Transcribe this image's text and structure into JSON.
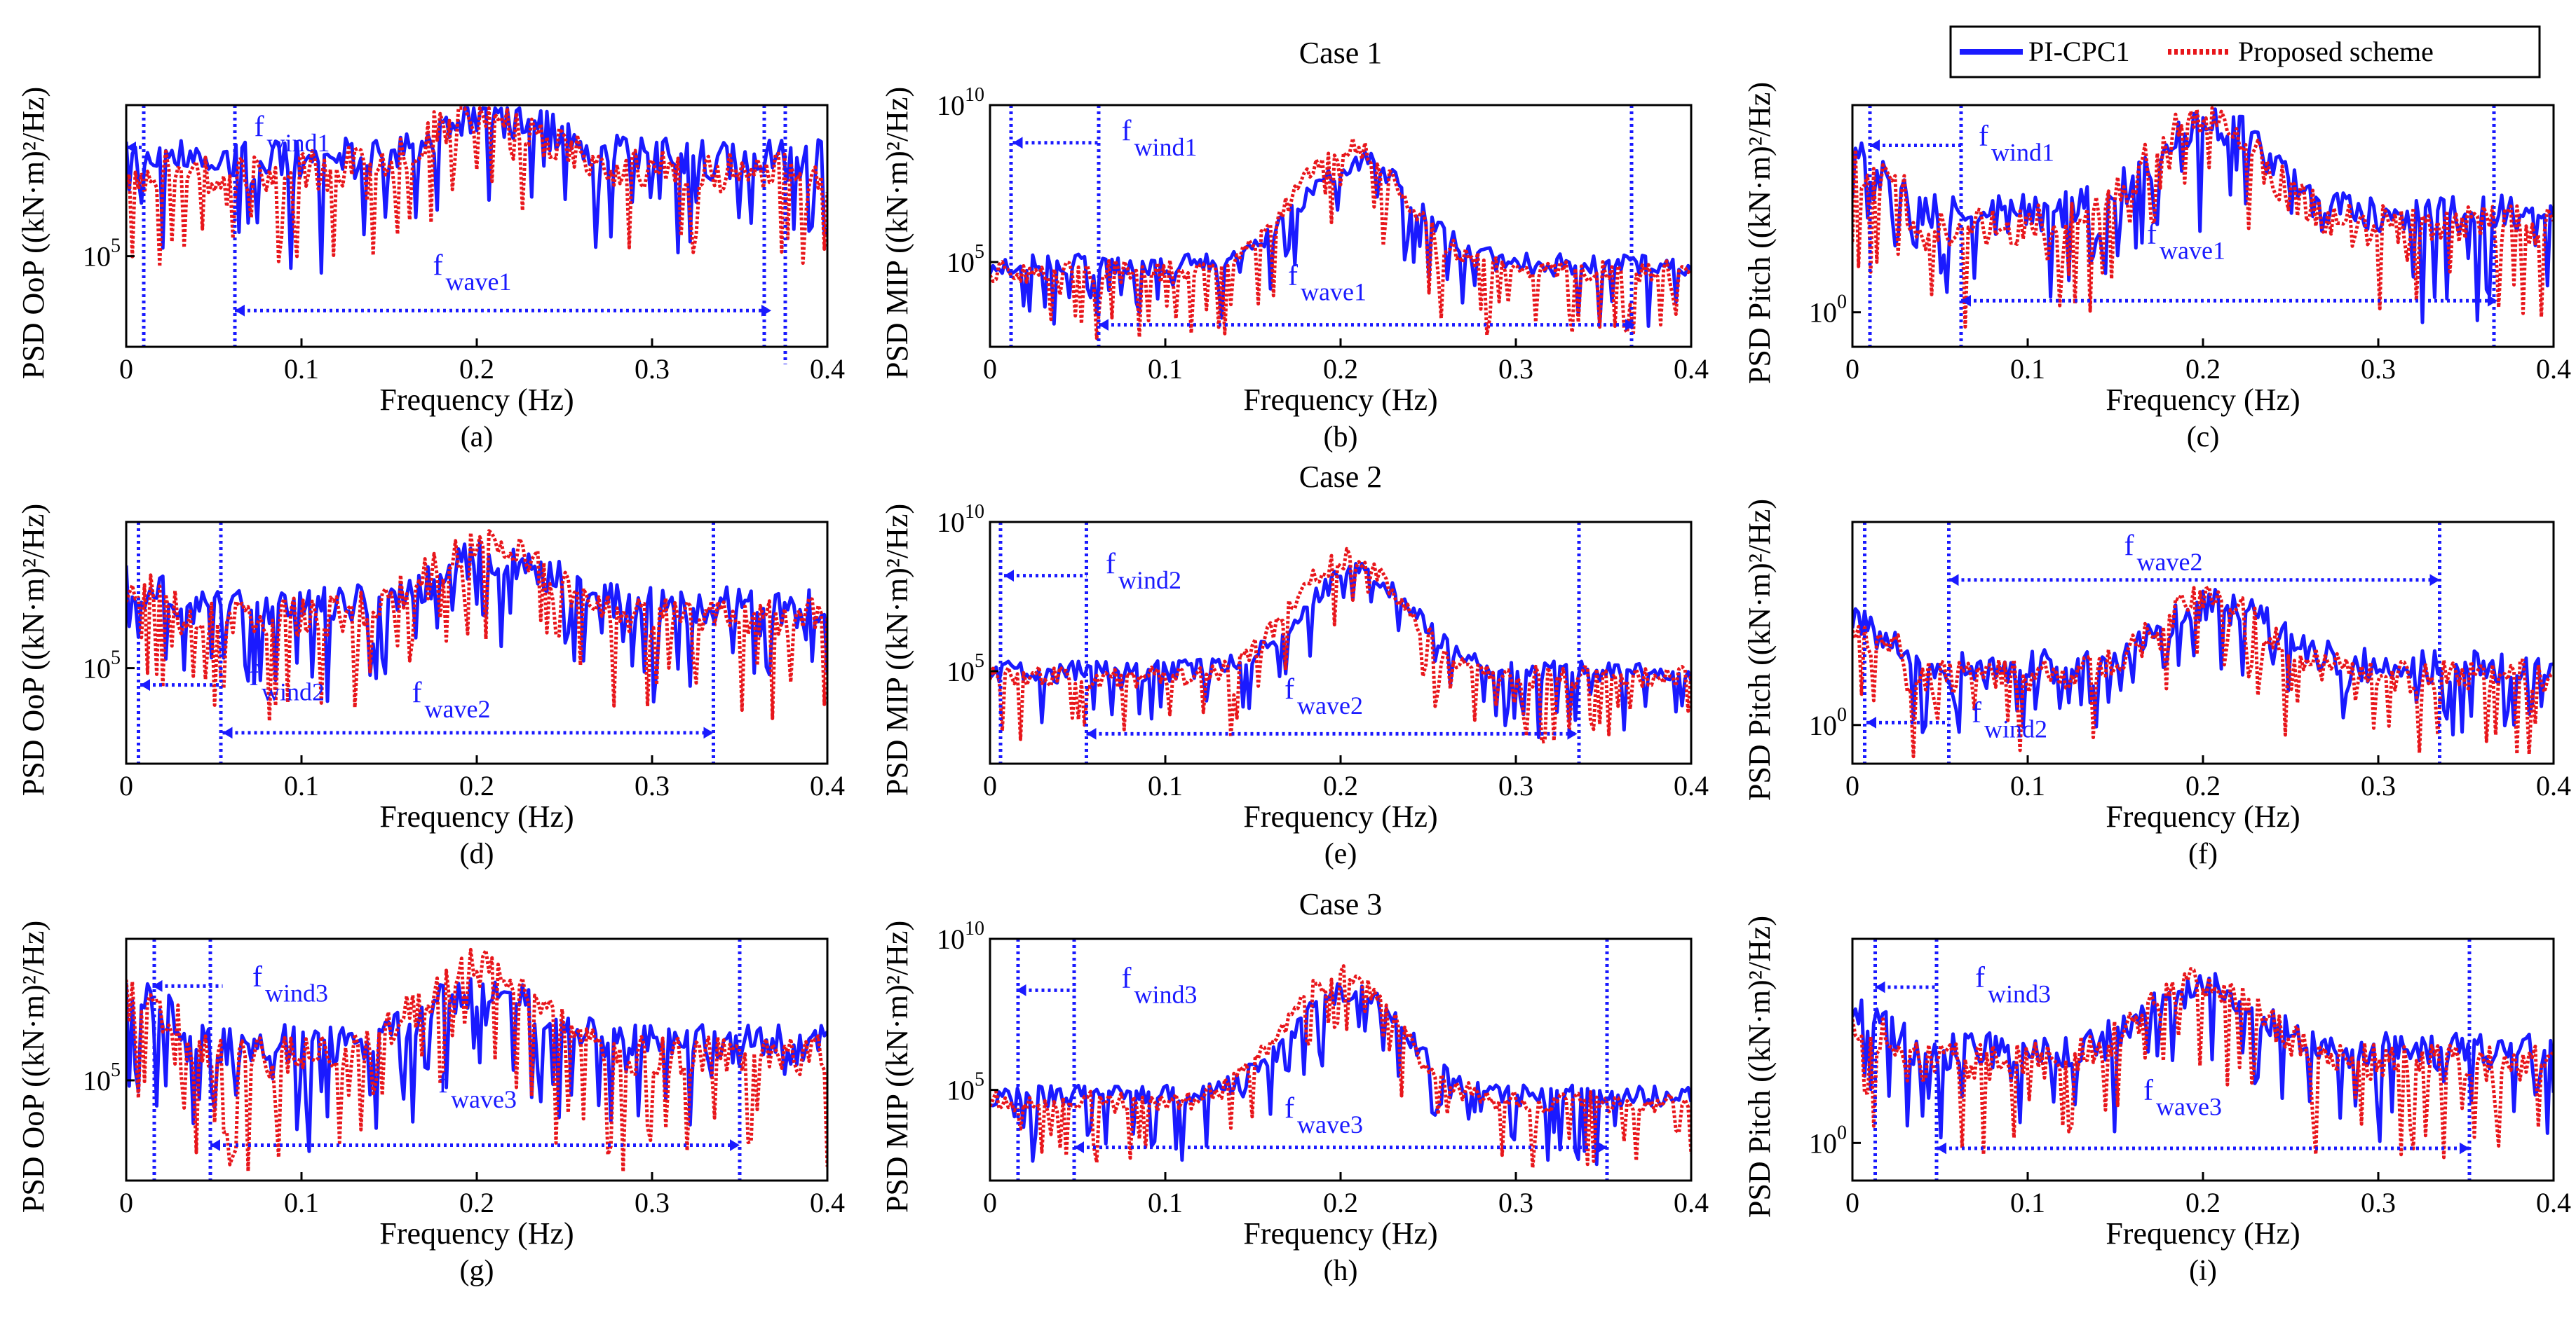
{
  "figure": {
    "legend": [
      {
        "label": "PI-CPC1",
        "color": "#1a1aff",
        "style": "solid"
      },
      {
        "label": "Proposed scheme",
        "color": "#e8161b",
        "style": "dotted"
      }
    ],
    "case_titles": [
      "Case 1",
      "Case 2",
      "Case 3"
    ]
  },
  "chart_data": [
    {
      "type": "line",
      "panel_label": "(a)",
      "row": 0,
      "col": 0,
      "ylabel": "PSD OoP ((kN·m)²/Hz)",
      "xlabel": "Frequency (Hz)",
      "xlim": [
        0,
        0.4
      ],
      "xticks": [
        "0",
        "0.1",
        "0.2",
        "0.3",
        "0.4"
      ],
      "ytick_labels": [
        {
          "base": "10",
          "exp": "5",
          "value": 5
        }
      ],
      "ylim_log10": [
        3.5,
        7.5
      ],
      "bands": [
        {
          "name": "f",
          "sub": "wind1",
          "from": 0.01,
          "to": 0.0,
          "label_x": 0.073,
          "label_ylog": 6.9,
          "arrow_ylog": 6.8
        },
        {
          "name": "f",
          "sub": "wave1",
          "from": 0.062,
          "to": 0.368,
          "label_x": 0.175,
          "label_ylog": 4.6,
          "arrow_ylog": 4.1
        }
      ],
      "vlines": [
        0.01,
        0.062,
        0.364,
        0.376
      ],
      "series": [
        {
          "name": "PI-CPC1",
          "peak_x": 0.21,
          "peak": 7.3,
          "floor": 6.6,
          "low_end": 6.0,
          "dip": 1.1,
          "seed": 11
        },
        {
          "name": "Proposed scheme",
          "peak_x": 0.205,
          "peak": 7.4,
          "floor": 6.4,
          "low_end": 5.9,
          "dip": 1.0,
          "seed": 12
        }
      ]
    },
    {
      "type": "line",
      "panel_label": "(b)",
      "row": 0,
      "col": 1,
      "ylabel": "PSD MIP ((kN·m)²/Hz)",
      "xlabel": "Frequency (Hz)",
      "xlim": [
        0,
        0.4
      ],
      "xticks": [
        "0",
        "0.1",
        "0.2",
        "0.3",
        "0.4"
      ],
      "ytick_labels": [
        {
          "base": "10",
          "exp": "10",
          "value": 10
        },
        {
          "base": "10",
          "exp": "5",
          "value": 5
        }
      ],
      "ylim_log10": [
        2.3,
        10
      ],
      "bands": [
        {
          "name": "f",
          "sub": "wind1",
          "from": 0.062,
          "to": 0.013,
          "label_x": 0.075,
          "label_ylog": 8.7,
          "arrow_ylog": 8.8
        },
        {
          "name": "f",
          "sub": "wave1",
          "from": 0.062,
          "to": 0.368,
          "label_x": 0.17,
          "label_ylog": 4.1,
          "arrow_ylog": 3.0
        }
      ],
      "vlines": [
        0.012,
        0.062,
        0.366
      ],
      "series": [
        {
          "name": "PI-CPC1",
          "peak_x": 0.21,
          "peak": 8.2,
          "floor": 4.9,
          "low_end": 4.3,
          "dip": 1.2,
          "seed": 21
        },
        {
          "name": "Proposed scheme",
          "peak_x": 0.205,
          "peak": 8.6,
          "floor": 4.7,
          "low_end": 4.0,
          "dip": 1.4,
          "seed": 22
        }
      ]
    },
    {
      "type": "line",
      "panel_label": "(c)",
      "row": 0,
      "col": 2,
      "ylabel": "PSD Pitch ((kN·m)²/Hz)",
      "xlabel": "Frequency (Hz)",
      "xlim": [
        0,
        0.4
      ],
      "xticks": [
        "0",
        "0.1",
        "0.2",
        "0.3",
        "0.4"
      ],
      "ytick_labels": [
        {
          "base": "10",
          "exp": "0",
          "value": 0
        }
      ],
      "ylim_log10": [
        -0.6,
        3.6
      ],
      "bands": [
        {
          "name": "f",
          "sub": "wind1",
          "from": 0.062,
          "to": 0.01,
          "label_x": 0.072,
          "label_ylog": 2.8,
          "arrow_ylog": 2.9
        },
        {
          "name": "f",
          "sub": "wave1",
          "from": 0.062,
          "to": 0.368,
          "label_x": 0.168,
          "label_ylog": 1.1,
          "arrow_ylog": 0.2
        }
      ],
      "vlines": [
        0.01,
        0.062,
        0.366
      ],
      "series": [
        {
          "name": "PI-CPC1",
          "peak_x": 0.205,
          "peak": 3.3,
          "floor": 1.7,
          "low_end": 2.7,
          "dip": 1.0,
          "seed": 31
        },
        {
          "name": "Proposed scheme",
          "peak_x": 0.2,
          "peak": 3.4,
          "floor": 1.5,
          "low_end": 2.5,
          "dip": 1.1,
          "seed": 32
        }
      ]
    },
    {
      "type": "line",
      "panel_label": "(d)",
      "row": 1,
      "col": 0,
      "ylabel": "PSD OoP ((kN·m)²/Hz)",
      "xlabel": "Frequency (Hz)",
      "xlim": [
        0,
        0.4
      ],
      "xticks": [
        "0",
        "0.1",
        "0.2",
        "0.3",
        "0.4"
      ],
      "ytick_labels": [
        {
          "base": "10",
          "exp": "5",
          "value": 5
        }
      ],
      "ylim_log10": [
        3.3,
        7.6
      ],
      "bands": [
        {
          "name": "f",
          "sub": "wind2",
          "from": 0.055,
          "to": 0.008,
          "label_x": 0.07,
          "label_ylog": 4.6,
          "arrow_ylog": 4.7
        },
        {
          "name": "f",
          "sub": "wave2",
          "from": 0.055,
          "to": 0.335,
          "label_x": 0.163,
          "label_ylog": 4.3,
          "arrow_ylog": 3.85
        }
      ],
      "vlines": [
        0.007,
        0.054,
        0.335
      ],
      "series": [
        {
          "name": "PI-CPC1",
          "peak_x": 0.21,
          "peak": 7.0,
          "floor": 6.1,
          "low_end": 6.6,
          "dip": 0.9,
          "seed": 41
        },
        {
          "name": "Proposed scheme",
          "peak_x": 0.205,
          "peak": 7.2,
          "floor": 5.9,
          "low_end": 6.5,
          "dip": 1.0,
          "seed": 42
        }
      ]
    },
    {
      "type": "line",
      "panel_label": "(e)",
      "row": 1,
      "col": 1,
      "ylabel": "PSD MIP ((kN·m)²/Hz)",
      "xlabel": "Frequency (Hz)",
      "xlim": [
        0,
        0.4
      ],
      "xticks": [
        "0",
        "0.1",
        "0.2",
        "0.3",
        "0.4"
      ],
      "ytick_labels": [
        {
          "base": "10",
          "exp": "10",
          "value": 10
        },
        {
          "base": "10",
          "exp": "5",
          "value": 5
        }
      ],
      "ylim_log10": [
        1.9,
        10
      ],
      "bands": [
        {
          "name": "f",
          "sub": "wind2",
          "from": 0.055,
          "to": 0.008,
          "label_x": 0.066,
          "label_ylog": 8.1,
          "arrow_ylog": 8.2
        },
        {
          "name": "f",
          "sub": "wave2",
          "from": 0.055,
          "to": 0.335,
          "label_x": 0.168,
          "label_ylog": 3.9,
          "arrow_ylog": 2.9
        }
      ],
      "vlines": [
        0.006,
        0.055,
        0.336
      ],
      "series": [
        {
          "name": "PI-CPC1",
          "peak_x": 0.21,
          "peak": 8.3,
          "floor": 5.0,
          "low_end": 4.3,
          "dip": 1.2,
          "seed": 51
        },
        {
          "name": "Proposed scheme",
          "peak_x": 0.205,
          "peak": 8.8,
          "floor": 4.8,
          "low_end": 4.1,
          "dip": 1.4,
          "seed": 52
        }
      ]
    },
    {
      "type": "line",
      "panel_label": "(f)",
      "row": 1,
      "col": 2,
      "ylabel": "PSD Pitch ((kN·m)²/Hz)",
      "xlabel": "Frequency (Hz)",
      "xlim": [
        0,
        0.4
      ],
      "xticks": [
        "0",
        "0.1",
        "0.2",
        "0.3",
        "0.4"
      ],
      "ytick_labels": [
        {
          "base": "10",
          "exp": "0",
          "value": 0
        }
      ],
      "ylim_log10": [
        -0.8,
        4.2
      ],
      "bands": [
        {
          "name": "f",
          "sub": "wind2",
          "from": 0.055,
          "to": 0.008,
          "label_x": 0.068,
          "label_ylog": -0.05,
          "arrow_ylog": 0.05
        },
        {
          "name": "f",
          "sub": "wave2",
          "from": 0.055,
          "to": 0.335,
          "label_x": 0.155,
          "label_ylog": 3.4,
          "arrow_ylog": 3.0
        }
      ],
      "vlines": [
        0.007,
        0.055,
        0.335
      ],
      "series": [
        {
          "name": "PI-CPC1",
          "peak_x": 0.21,
          "peak": 2.5,
          "floor": 1.2,
          "low_end": 2.1,
          "dip": 0.8,
          "seed": 61
        },
        {
          "name": "Proposed scheme",
          "peak_x": 0.205,
          "peak": 2.6,
          "floor": 1.0,
          "low_end": 1.9,
          "dip": 1.0,
          "seed": 62
        }
      ]
    },
    {
      "type": "line",
      "panel_label": "(g)",
      "row": 2,
      "col": 0,
      "ylabel": "PSD OoP ((kN·m)²/Hz)",
      "xlabel": "Frequency (Hz)",
      "xlim": [
        0,
        0.4
      ],
      "xticks": [
        "0",
        "0.1",
        "0.2",
        "0.3",
        "0.4"
      ],
      "ytick_labels": [
        {
          "base": "10",
          "exp": "5",
          "value": 5
        }
      ],
      "ylim_log10": [
        3.3,
        7.4
      ],
      "bands": [
        {
          "name": "f",
          "sub": "wind3",
          "from": 0.055,
          "to": 0.015,
          "label_x": 0.072,
          "label_ylog": 6.5,
          "arrow_ylog": 6.6
        },
        {
          "name": "f",
          "sub": "wave3",
          "from": 0.048,
          "to": 0.35,
          "label_x": 0.178,
          "label_ylog": 4.7,
          "arrow_ylog": 3.9
        }
      ],
      "vlines": [
        0.016,
        0.048,
        0.35
      ],
      "series": [
        {
          "name": "PI-CPC1",
          "peak_x": 0.205,
          "peak": 6.6,
          "floor": 5.6,
          "low_end": 6.5,
          "dip": 1.0,
          "seed": 71
        },
        {
          "name": "Proposed scheme",
          "peak_x": 0.2,
          "peak": 6.9,
          "floor": 5.4,
          "low_end": 6.4,
          "dip": 1.2,
          "seed": 72
        }
      ]
    },
    {
      "type": "line",
      "panel_label": "(h)",
      "row": 2,
      "col": 1,
      "ylabel": "PSD MIP ((kN·m)²/Hz)",
      "xlabel": "Frequency (Hz)",
      "xlim": [
        0,
        0.4
      ],
      "xticks": [
        "0",
        "0.1",
        "0.2",
        "0.3",
        "0.4"
      ],
      "ytick_labels": [
        {
          "base": "10",
          "exp": "10",
          "value": 10
        },
        {
          "base": "10",
          "exp": "5",
          "value": 5
        }
      ],
      "ylim_log10": [
        2.0,
        10
      ],
      "bands": [
        {
          "name": "f",
          "sub": "wind3",
          "from": 0.05,
          "to": 0.015,
          "label_x": 0.075,
          "label_ylog": 8.2,
          "arrow_ylog": 8.3
        },
        {
          "name": "f",
          "sub": "wave3",
          "from": 0.048,
          "to": 0.352,
          "label_x": 0.168,
          "label_ylog": 3.9,
          "arrow_ylog": 3.1
        }
      ],
      "vlines": [
        0.016,
        0.048,
        0.352
      ],
      "series": [
        {
          "name": "PI-CPC1",
          "peak_x": 0.205,
          "peak": 8.3,
          "floor": 4.8,
          "low_end": 4.4,
          "dip": 1.3,
          "seed": 81
        },
        {
          "name": "Proposed scheme",
          "peak_x": 0.2,
          "peak": 8.8,
          "floor": 4.6,
          "low_end": 4.2,
          "dip": 1.4,
          "seed": 82
        }
      ]
    },
    {
      "type": "line",
      "panel_label": "(i)",
      "row": 2,
      "col": 2,
      "ylabel": "PSD Pitch ((kN·m)²/Hz)",
      "xlabel": "Frequency (Hz)",
      "xlim": [
        0,
        0.4
      ],
      "xticks": [
        "0",
        "0.1",
        "0.2",
        "0.3",
        "0.4"
      ],
      "ytick_labels": [
        {
          "base": "10",
          "exp": "0",
          "value": 0
        }
      ],
      "ylim_log10": [
        -0.7,
        3.8
      ],
      "bands": [
        {
          "name": "f",
          "sub": "wind3",
          "from": 0.048,
          "to": 0.013,
          "label_x": 0.07,
          "label_ylog": 2.8,
          "arrow_ylog": 2.9
        },
        {
          "name": "f",
          "sub": "wave3",
          "from": 0.048,
          "to": 0.352,
          "label_x": 0.166,
          "label_ylog": 0.7,
          "arrow_ylog": -0.1
        }
      ],
      "vlines": [
        0.013,
        0.048,
        0.352
      ],
      "series": [
        {
          "name": "PI-CPC1",
          "peak_x": 0.2,
          "peak": 2.9,
          "floor": 1.7,
          "low_end": 2.4,
          "dip": 1.0,
          "seed": 91
        },
        {
          "name": "Proposed scheme",
          "peak_x": 0.2,
          "peak": 3.0,
          "floor": 1.5,
          "low_end": 2.2,
          "dip": 1.1,
          "seed": 92
        }
      ]
    }
  ]
}
